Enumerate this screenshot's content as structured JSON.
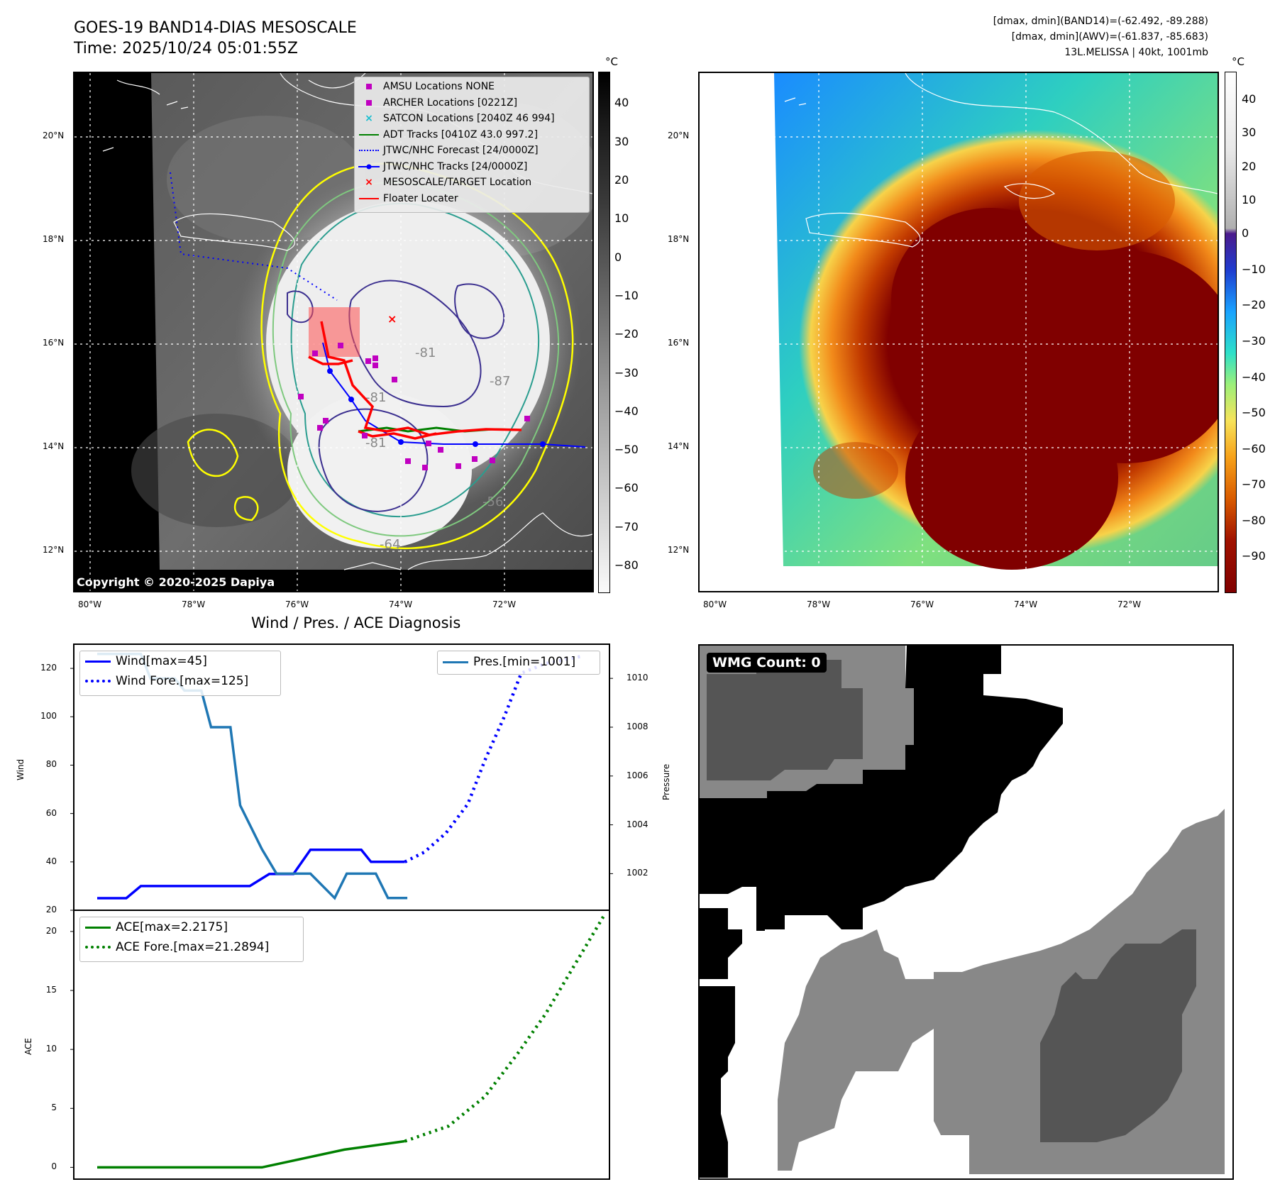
{
  "header": {
    "title_line1": "GOES-19 BAND14-DIAS MESOSCALE",
    "title_line2": "Time: 2025/10/24 05:01:55Z",
    "info_line1": "[dmax, dmin](BAND14)=(-62.492, -89.288)",
    "info_line2": "[dmax, dmin](AWV)=(-61.837, -85.683)",
    "info_line3": "13L.MELISSA | 40kt, 1001mb"
  },
  "map_left": {
    "lat_labels": [
      "20°N",
      "18°N",
      "16°N",
      "14°N",
      "12°N"
    ],
    "lon_labels": [
      "80°W",
      "78°W",
      "76°W",
      "74°W",
      "72°W"
    ],
    "copyright": "Copyright © 2020-2025 Dapiya",
    "contour_labels": [
      "-81",
      "-81",
      "-87",
      "-81",
      "-64",
      "-56"
    ],
    "legend": [
      {
        "label": "AMSU Locations NONE",
        "symbol": "square",
        "color": "#c000c0"
      },
      {
        "label": "ARCHER Locations [0221Z]",
        "symbol": "square",
        "color": "#c000c0"
      },
      {
        "label": "SATCON Locations [2040Z 46 994]",
        "symbol": "x",
        "color": "#17becf"
      },
      {
        "label": "ADT Tracks [0410Z 43.0 997.2]",
        "symbol": "line",
        "color": "#008000"
      },
      {
        "label": "JTWC/NHC Forecast [24/0000Z]",
        "symbol": "dotted",
        "color": "#0000ff"
      },
      {
        "label": "JTWC/NHC Tracks [24/0000Z]",
        "symbol": "line-dot",
        "color": "#0000ff"
      },
      {
        "label": "MESOSCALE/TARGET Location",
        "symbol": "x",
        "color": "#ff0000"
      },
      {
        "label": "Floater Locater",
        "symbol": "line",
        "color": "#ff0000"
      }
    ],
    "colorbar": {
      "unit": "°C",
      "ticks": [
        "40",
        "30",
        "20",
        "10",
        "0",
        "−10",
        "−20",
        "−30",
        "−40",
        "−50",
        "−60",
        "−70",
        "−80"
      ]
    }
  },
  "map_right": {
    "lat_labels": [
      "20°N",
      "18°N",
      "16°N",
      "14°N",
      "12°N"
    ],
    "lon_labels": [
      "80°W",
      "78°W",
      "76°W",
      "74°W",
      "72°W"
    ],
    "colorbar": {
      "unit": "°C",
      "ticks": [
        "40",
        "30",
        "20",
        "10",
        "0",
        "−10",
        "−20",
        "−30",
        "−40",
        "−50",
        "−60",
        "−70",
        "−80",
        "−90"
      ]
    }
  },
  "wmg": {
    "badge": "WMG Count: 0"
  },
  "chart_data": [
    {
      "type": "line",
      "title": "Wind / Pres. / ACE Diagnosis",
      "ylabel": "Wind",
      "ylabel_right": "Pressure",
      "ylim": [
        20,
        130
      ],
      "ylim_right": [
        1000.5,
        1011.4
      ],
      "xlim": [
        0,
        22
      ],
      "yticks": [
        20,
        40,
        60,
        80,
        100,
        120
      ],
      "yticks_right": [
        1002,
        1004,
        1006,
        1008,
        1010
      ],
      "colors": {
        "wind": "#0000ff",
        "pres": "#1f77b4"
      },
      "series": [
        {
          "name": "Wind[max=45]",
          "style": "solid",
          "x": [
            0,
            1.2,
            1.8,
            3,
            4.8,
            5.5,
            6.3,
            7.1,
            8.1,
            8.8,
            9.8,
            10.2,
            10.9,
            11.3,
            12.7
          ],
          "values": [
            25,
            25,
            30,
            30,
            30,
            30,
            30,
            35,
            35,
            45,
            45,
            45,
            45,
            40,
            40
          ]
        },
        {
          "name": "Wind Fore.[max=125]",
          "style": "dotted",
          "x": [
            12.7,
            13.5,
            14.4,
            15.3,
            16,
            16.8,
            17.5,
            18.5,
            20
          ],
          "values": [
            40,
            44,
            52,
            64,
            82,
            100,
            118,
            122,
            125
          ]
        },
        {
          "name": "Pres.[min=1001]",
          "style": "solid",
          "axis": "right",
          "x": [
            0,
            1.8,
            2.2,
            3.2,
            3.6,
            4.3,
            4.7,
            5.5,
            5.9,
            6.8,
            7.4,
            8.1,
            8.8,
            9.8,
            10.3,
            10.8,
            11.5,
            12.0,
            12.5,
            12.8
          ],
          "values": [
            1011,
            1011,
            1010,
            1010,
            1009.5,
            1009.5,
            1008,
            1008,
            1004.8,
            1003,
            1002,
            1002,
            1002,
            1001,
            1002,
            1002,
            1002,
            1001,
            1001,
            1001
          ]
        }
      ]
    },
    {
      "type": "line",
      "ylabel": "ACE",
      "ylim": [
        -1,
        21.8
      ],
      "xlim": [
        0,
        22
      ],
      "yticks": [
        0,
        5,
        10,
        15,
        20
      ],
      "colors": {
        "ace": "#008000"
      },
      "series": [
        {
          "name": "ACE[max=2.2175]",
          "style": "solid",
          "x": [
            0,
            6.8,
            10.2,
            12.7
          ],
          "values": [
            0,
            0,
            1.5,
            2.2175
          ]
        },
        {
          "name": "ACE Fore.[max=21.2894]",
          "style": "dotted",
          "x": [
            12.7,
            14.5,
            16,
            17.3,
            18.5,
            19.8,
            20.9
          ],
          "values": [
            2.2175,
            3.5,
            6,
            9.5,
            13,
            17.5,
            21.2894
          ]
        }
      ]
    }
  ]
}
